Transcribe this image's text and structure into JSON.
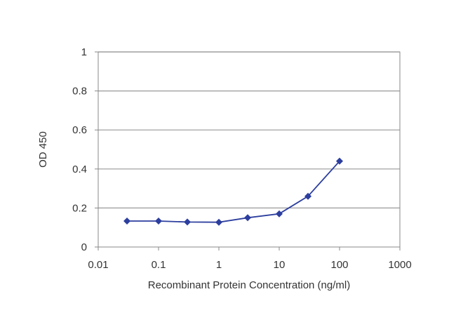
{
  "chart_data": {
    "type": "line",
    "title": "",
    "xlabel": "Recombinant Protein Concentration (ng/ml)",
    "ylabel": "OD 450",
    "xscale": "log",
    "xlim": [
      0.01,
      1000
    ],
    "ylim": [
      0,
      1
    ],
    "xticks": [
      0.01,
      0.1,
      1,
      10,
      100,
      1000
    ],
    "xtick_labels": [
      "0.01",
      "0.1",
      "1",
      "10",
      "100",
      "1000"
    ],
    "yticks": [
      0,
      0.2,
      0.4,
      0.6,
      0.8,
      1
    ],
    "ytick_labels": [
      "0",
      "0.2",
      "0.4",
      "0.6",
      "0.8",
      "1"
    ],
    "grid": "horizontal",
    "legend": "none",
    "series": [
      {
        "color": "#2c3e9e",
        "marker": "diamond",
        "x": [
          0.03,
          0.1,
          0.3,
          1,
          3,
          10,
          30,
          100
        ],
        "y": [
          0.133,
          0.133,
          0.128,
          0.127,
          0.15,
          0.17,
          0.26,
          0.44
        ]
      }
    ]
  }
}
